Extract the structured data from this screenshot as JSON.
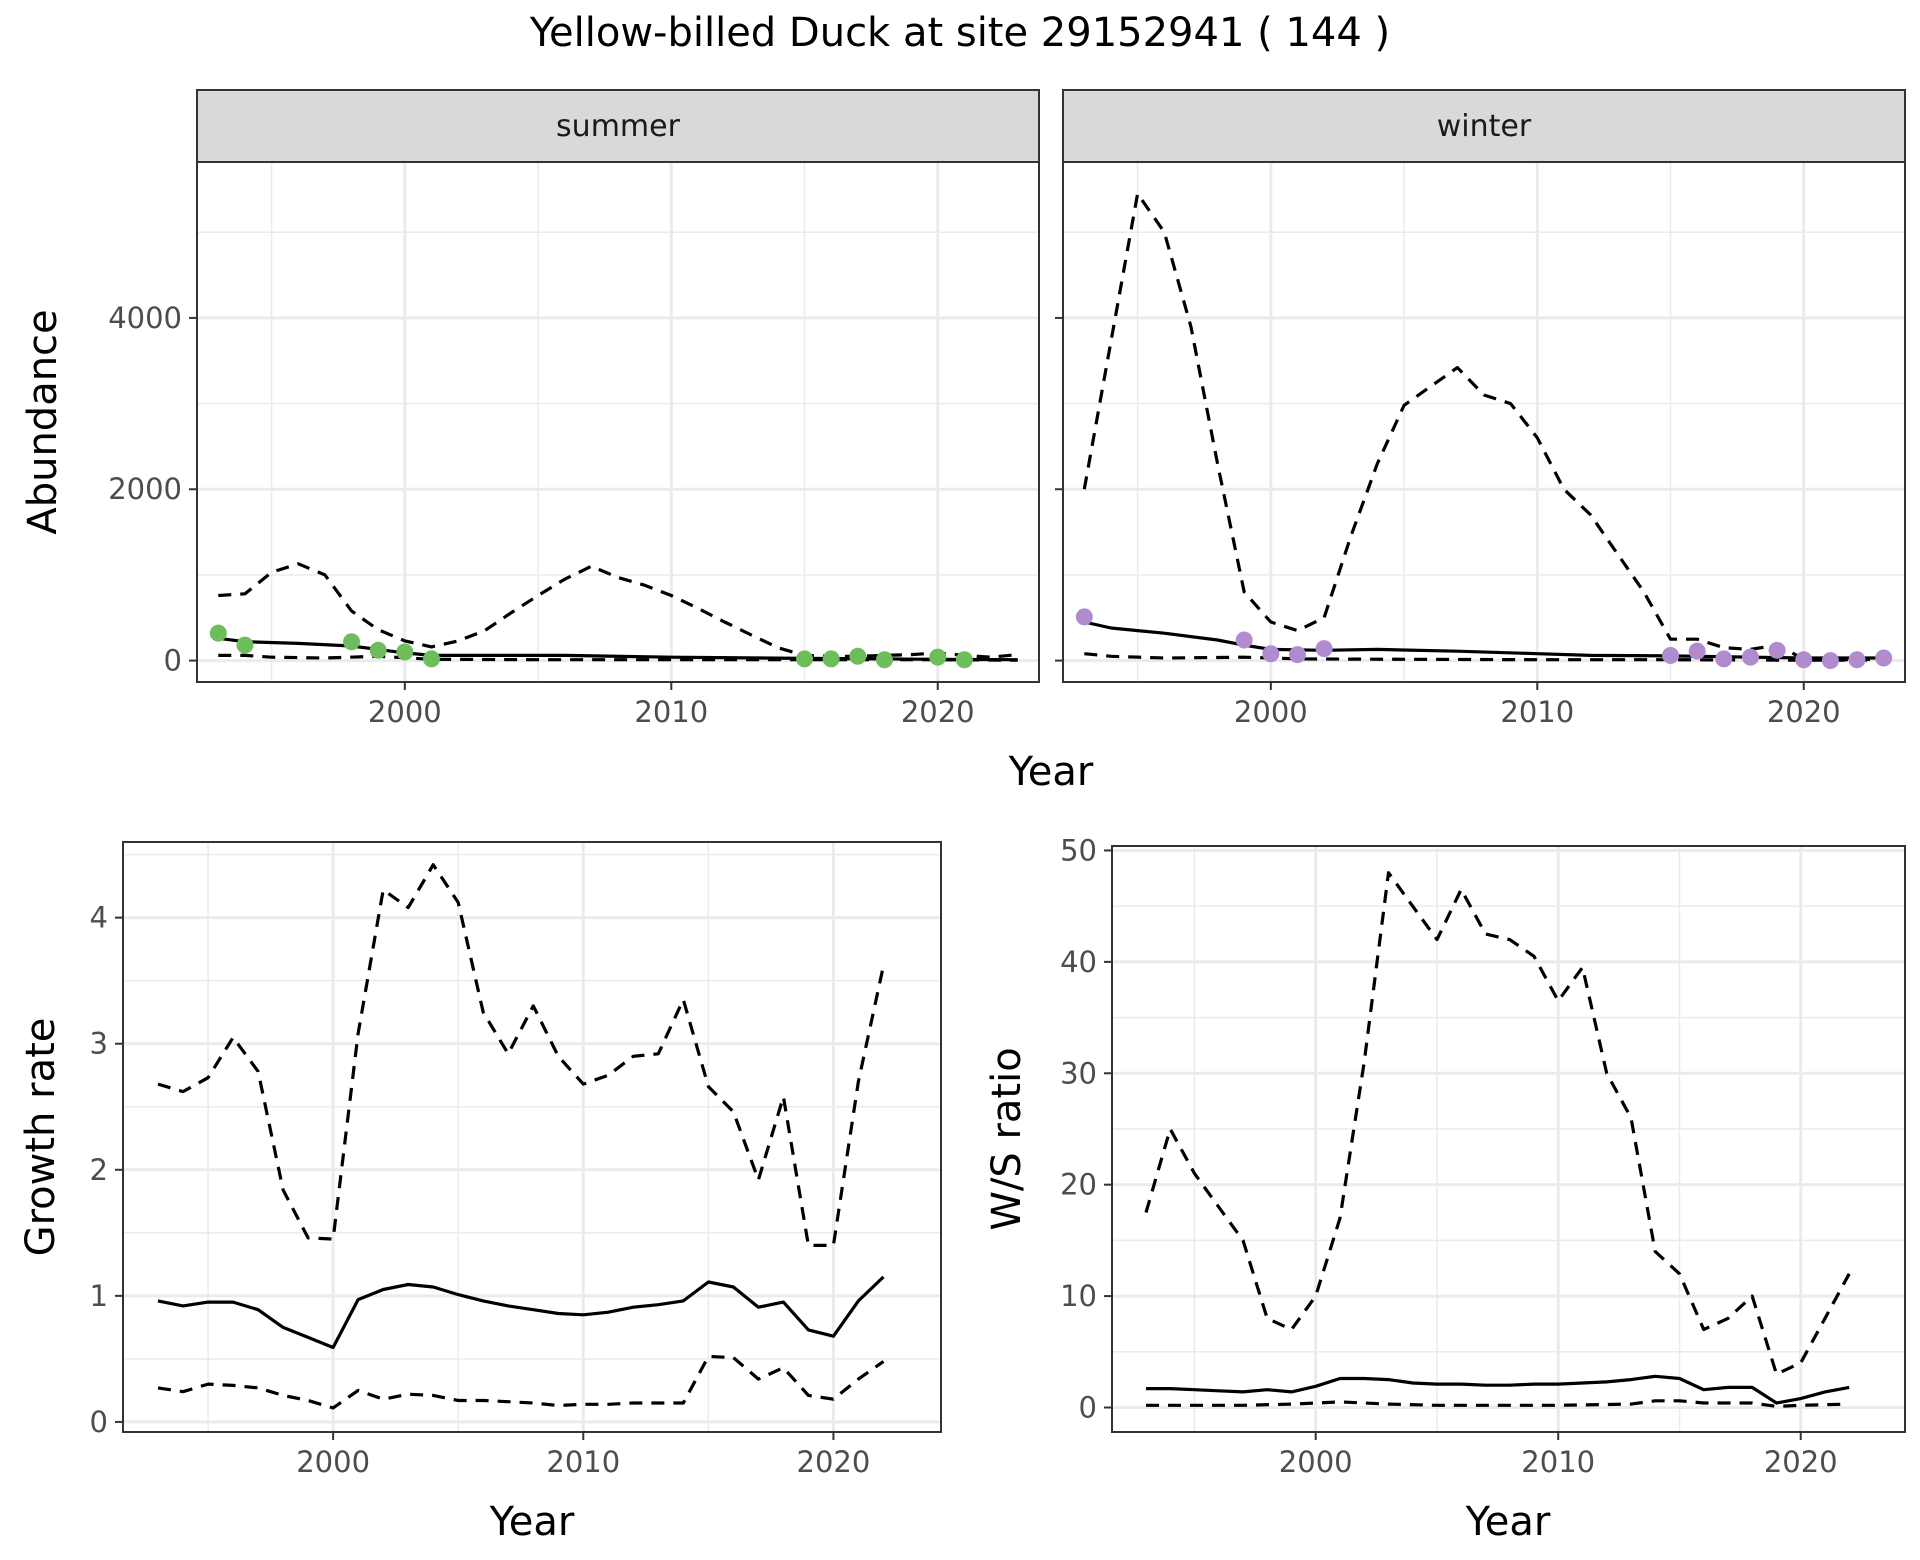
{
  "figure": {
    "title": "Yellow-billed Duck at site 29152941 ( 144 )"
  },
  "colors": {
    "summer_points": "#6dbd5c",
    "winter_points": "#b08ccf",
    "line": "#000000",
    "panel_border": "#333333",
    "grid": "#ebebeb",
    "strip_bg": "#d9d9d9"
  },
  "chart_data": [
    {
      "type": "line",
      "panel": "summer",
      "facet_label": "summer",
      "xlabel": "Year",
      "ylabel": "Abundance",
      "xlim": [
        1992.2,
        2023.8
      ],
      "ylim": [
        -250,
        5820
      ],
      "x_ticks": [
        2000,
        2010,
        2020
      ],
      "y_ticks": [
        0,
        2000,
        4000
      ],
      "grid": true,
      "series": [
        {
          "role": "mean",
          "style": "solid",
          "x": [
            1993,
            1994,
            1996,
            1998,
            2000,
            2001,
            2004,
            2006,
            2010,
            2015,
            2018,
            2020,
            2023
          ],
          "values": [
            260,
            220,
            200,
            170,
            90,
            60,
            60,
            60,
            40,
            25,
            20,
            15,
            10
          ]
        },
        {
          "role": "upper",
          "style": "dashed",
          "x": [
            1993,
            1994,
            1995,
            1996,
            1997,
            1998,
            1999,
            2000,
            2001,
            2002,
            2003,
            2004,
            2005,
            2006,
            2007,
            2008,
            2009,
            2010,
            2011,
            2012,
            2013,
            2014,
            2015,
            2016,
            2017,
            2018,
            2019,
            2020,
            2021,
            2022,
            2023
          ],
          "values": [
            760,
            780,
            1030,
            1130,
            1000,
            580,
            360,
            230,
            160,
            230,
            350,
            560,
            760,
            950,
            1100,
            970,
            880,
            760,
            610,
            450,
            300,
            150,
            60,
            50,
            50,
            60,
            70,
            90,
            60,
            40,
            70
          ]
        },
        {
          "role": "lower",
          "style": "dashed",
          "x": [
            1993,
            1994,
            1995,
            1997,
            1999,
            2001,
            2005,
            2010,
            2015,
            2020,
            2023
          ],
          "values": [
            60,
            60,
            40,
            30,
            50,
            15,
            10,
            10,
            10,
            10,
            5
          ]
        }
      ],
      "points": {
        "x": [
          1993,
          1994,
          1998,
          1999,
          2000,
          2001,
          2015,
          2016,
          2017,
          2018,
          2020,
          2021
        ],
        "values": [
          320,
          180,
          220,
          120,
          100,
          20,
          20,
          20,
          50,
          10,
          40,
          10
        ]
      }
    },
    {
      "type": "line",
      "panel": "winter",
      "facet_label": "winter",
      "xlabel": "Year",
      "ylabel": "Abundance",
      "xlim": [
        1992.2,
        2023.8
      ],
      "ylim": [
        -250,
        5820
      ],
      "x_ticks": [
        2000,
        2010,
        2020
      ],
      "y_ticks": [
        0,
        2000,
        4000
      ],
      "grid": true,
      "series": [
        {
          "role": "mean",
          "style": "solid",
          "x": [
            1993,
            1994,
            1996,
            1998,
            1999,
            2000,
            2002,
            2004,
            2007,
            2010,
            2012,
            2015,
            2017,
            2020,
            2023
          ],
          "values": [
            450,
            380,
            320,
            240,
            180,
            130,
            120,
            130,
            110,
            80,
            60,
            55,
            45,
            30,
            30
          ]
        },
        {
          "role": "upper",
          "style": "dashed",
          "x": [
            1993,
            1995,
            1996,
            1997,
            1998,
            1999,
            2000,
            2001,
            2002,
            2003,
            2004,
            2005,
            2006,
            2007,
            2008,
            2009,
            2010,
            2011,
            2012,
            2013,
            2014,
            2015,
            2016,
            2017,
            2018,
            2019,
            2020,
            2021,
            2022,
            2023
          ],
          "values": [
            2000,
            5450,
            5000,
            3900,
            2300,
            800,
            450,
            350,
            500,
            1450,
            2300,
            2980,
            3200,
            3420,
            3100,
            3000,
            2600,
            2000,
            1700,
            1250,
            800,
            250,
            250,
            150,
            130,
            180,
            20,
            10,
            10,
            20
          ]
        },
        {
          "role": "lower",
          "style": "dashed",
          "x": [
            1993,
            1994,
            1996,
            1999,
            2001,
            2005,
            2010,
            2015,
            2020,
            2023
          ],
          "values": [
            80,
            50,
            30,
            40,
            20,
            15,
            10,
            10,
            5,
            5
          ]
        }
      ],
      "points": {
        "x": [
          1993,
          1999,
          2000,
          2001,
          2002,
          2015,
          2016,
          2017,
          2018,
          2019,
          2020,
          2021,
          2022,
          2023
        ],
        "values": [
          510,
          240,
          80,
          70,
          140,
          60,
          110,
          20,
          40,
          120,
          10,
          0,
          10,
          30
        ]
      }
    },
    {
      "type": "line",
      "panel": "growth",
      "xlabel": "Year",
      "ylabel": "Growth rate",
      "xlim": [
        1991.6,
        2024.3
      ],
      "ylim": [
        -0.08,
        4.6
      ],
      "x_ticks": [
        2000,
        2010,
        2020
      ],
      "y_ticks": [
        0,
        1,
        2,
        3,
        4
      ],
      "grid": true,
      "series": [
        {
          "role": "mean",
          "style": "solid",
          "x": [
            1993,
            1994,
            1995,
            1996,
            1997,
            1998,
            1999,
            2000,
            2001,
            2002,
            2003,
            2004,
            2005,
            2006,
            2007,
            2008,
            2009,
            2010,
            2011,
            2012,
            2013,
            2014,
            2015,
            2016,
            2017,
            2018,
            2019,
            2020,
            2021,
            2022
          ],
          "values": [
            0.96,
            0.92,
            0.95,
            0.95,
            0.89,
            0.75,
            0.67,
            0.59,
            0.97,
            1.05,
            1.09,
            1.07,
            1.01,
            0.96,
            0.92,
            0.89,
            0.86,
            0.85,
            0.87,
            0.91,
            0.93,
            0.96,
            1.11,
            1.07,
            0.91,
            0.95,
            0.73,
            0.68,
            0.96,
            1.15
          ]
        },
        {
          "role": "upper",
          "style": "dashed",
          "x": [
            1993,
            1994,
            1995,
            1996,
            1997,
            1998,
            1999,
            2000,
            2001,
            2002,
            2003,
            2004,
            2005,
            2006,
            2007,
            2008,
            2009,
            2010,
            2011,
            2012,
            2013,
            2014,
            2015,
            2016,
            2017,
            2018,
            2019,
            2020,
            2021,
            2022
          ],
          "values": [
            2.68,
            2.62,
            2.73,
            3.05,
            2.78,
            1.84,
            1.46,
            1.45,
            3.08,
            4.22,
            4.08,
            4.42,
            4.12,
            3.25,
            2.92,
            3.3,
            2.9,
            2.68,
            2.75,
            2.9,
            2.92,
            3.35,
            2.66,
            2.46,
            1.92,
            2.58,
            1.4,
            1.4,
            2.7,
            3.62
          ]
        },
        {
          "role": "lower",
          "style": "dashed",
          "x": [
            1993,
            1994,
            1995,
            1996,
            1997,
            1998,
            1999,
            2000,
            2001,
            2002,
            2003,
            2004,
            2005,
            2006,
            2007,
            2008,
            2009,
            2010,
            2011,
            2012,
            2013,
            2014,
            2015,
            2016,
            2017,
            2018,
            2019,
            2020,
            2021,
            2022
          ],
          "values": [
            0.27,
            0.24,
            0.3,
            0.29,
            0.27,
            0.21,
            0.17,
            0.11,
            0.25,
            0.18,
            0.22,
            0.21,
            0.17,
            0.17,
            0.16,
            0.15,
            0.13,
            0.14,
            0.14,
            0.15,
            0.15,
            0.15,
            0.52,
            0.51,
            0.34,
            0.43,
            0.21,
            0.18,
            0.34,
            0.48
          ]
        }
      ]
    },
    {
      "type": "line",
      "panel": "ratio",
      "xlabel": "Year",
      "ylabel": "W/S ratio",
      "xlim": [
        1991.6,
        2024.3
      ],
      "ylim": [
        -2.2,
        50.4
      ],
      "x_ticks": [
        2000,
        2010,
        2020
      ],
      "y_ticks": [
        0,
        10,
        20,
        30,
        40,
        50
      ],
      "grid": true,
      "series": [
        {
          "role": "mean",
          "style": "solid",
          "x": [
            1993,
            1994,
            1995,
            1996,
            1997,
            1998,
            1999,
            2000,
            2001,
            2002,
            2003,
            2004,
            2005,
            2006,
            2007,
            2008,
            2009,
            2010,
            2011,
            2012,
            2013,
            2014,
            2015,
            2016,
            2017,
            2018,
            2019,
            2020,
            2021,
            2022
          ],
          "values": [
            1.7,
            1.7,
            1.6,
            1.5,
            1.4,
            1.6,
            1.4,
            1.9,
            2.6,
            2.6,
            2.5,
            2.2,
            2.1,
            2.1,
            2.0,
            2.0,
            2.1,
            2.1,
            2.2,
            2.3,
            2.5,
            2.8,
            2.6,
            1.6,
            1.8,
            1.8,
            0.4,
            0.8,
            1.4,
            1.8
          ]
        },
        {
          "role": "upper",
          "style": "dashed",
          "x": [
            1993,
            1994,
            1995,
            1996,
            1997,
            1998,
            1999,
            2000,
            2001,
            2002,
            2003,
            2004,
            2005,
            2006,
            2007,
            2008,
            2009,
            2010,
            2011,
            2012,
            2013,
            2014,
            2015,
            2016,
            2017,
            2018,
            2019,
            2020,
            2021,
            2022
          ],
          "values": [
            17.5,
            25,
            21,
            18,
            15,
            8,
            7,
            10,
            17,
            31,
            48,
            45,
            42,
            46.5,
            42.5,
            42,
            40.5,
            36.5,
            39.5,
            30,
            26,
            14,
            12,
            7,
            8,
            10,
            3,
            4,
            8,
            12
          ]
        },
        {
          "role": "lower",
          "style": "dashed",
          "x": [
            1993,
            1995,
            1997,
            1999,
            2001,
            2003,
            2005,
            2010,
            2013,
            2014,
            2015,
            2016,
            2018,
            2019,
            2020,
            2022
          ],
          "values": [
            0.2,
            0.2,
            0.2,
            0.3,
            0.5,
            0.3,
            0.2,
            0.2,
            0.3,
            0.6,
            0.6,
            0.4,
            0.4,
            0.1,
            0.2,
            0.3
          ]
        }
      ]
    }
  ]
}
